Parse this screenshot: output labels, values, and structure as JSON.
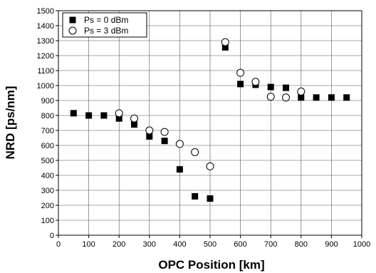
{
  "chart_data": {
    "type": "scatter",
    "xlabel": "OPC Position [km]",
    "ylabel": "NRD [ps/nm]",
    "xlim": [
      0,
      1000
    ],
    "ylim": [
      0,
      1500
    ],
    "xticks": [
      0,
      100,
      200,
      300,
      400,
      500,
      600,
      700,
      800,
      900,
      1000
    ],
    "yticks": [
      0,
      100,
      200,
      300,
      400,
      500,
      600,
      700,
      800,
      900,
      1000,
      1100,
      1200,
      1300,
      1400,
      1500
    ],
    "grid": true,
    "legend_position": "top-left",
    "series": [
      {
        "name": "Ps = 0 dBm",
        "marker": "filled-square",
        "color": "#000000",
        "x": [
          50,
          100,
          150,
          200,
          250,
          300,
          350,
          400,
          450,
          500,
          550,
          600,
          650,
          700,
          750,
          800,
          850,
          900,
          950
        ],
        "y": [
          815,
          800,
          800,
          780,
          740,
          660,
          630,
          440,
          260,
          245,
          1255,
          1010,
          1005,
          990,
          985,
          920,
          920,
          920,
          920
        ]
      },
      {
        "name": "Ps = 3 dBm",
        "marker": "open-circle",
        "color": "#000000",
        "x": [
          200,
          250,
          300,
          350,
          400,
          450,
          500,
          550,
          600,
          650,
          700,
          750,
          800
        ],
        "y": [
          815,
          780,
          700,
          690,
          610,
          555,
          460,
          1290,
          1085,
          1025,
          925,
          920,
          960
        ]
      }
    ]
  }
}
